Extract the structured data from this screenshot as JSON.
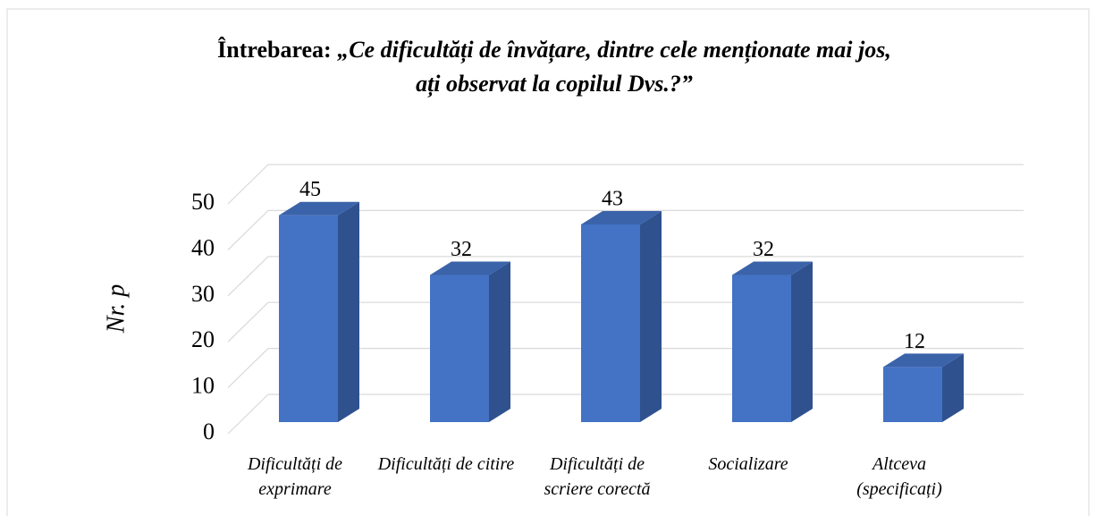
{
  "chart_data": {
    "type": "bar3d",
    "title": [
      "Întrebarea: ",
      "„Ce dificultăți de învățare, dintre cele menționate mai jos,",
      "ați observat la copilul Dvs.?”"
    ],
    "y_label": "Nr. p",
    "categories": [
      "Dificultăți de exprimare",
      "Dificultăți de citire",
      "Dificultăți de scriere corectă",
      "Socializare",
      "Altceva (specificați)"
    ],
    "values": [
      45,
      32,
      43,
      32,
      12
    ],
    "color": "#4472c4",
    "ylim": [
      0,
      50
    ],
    "yticks": [
      0,
      10,
      20,
      30,
      40,
      50
    ],
    "grid": true
  }
}
